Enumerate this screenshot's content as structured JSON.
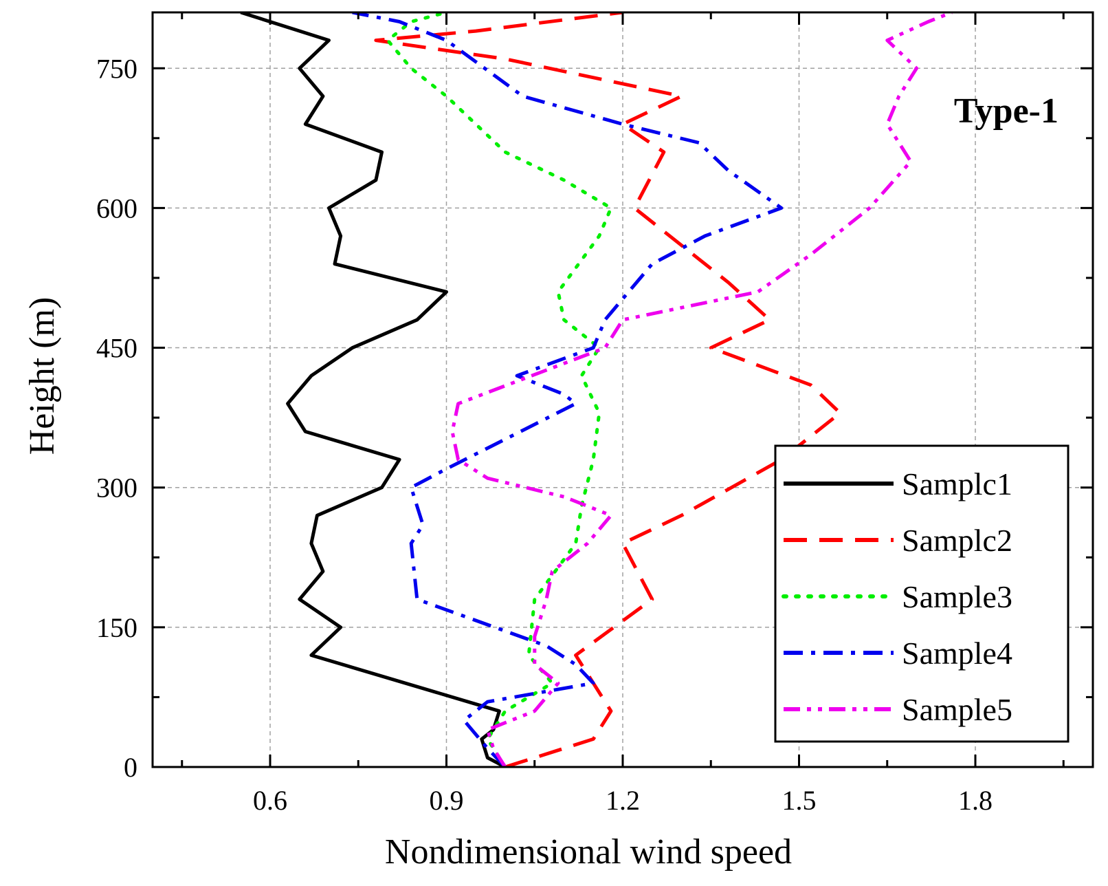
{
  "chart_data": {
    "type": "line",
    "title": "",
    "annotation": "Type-1",
    "xlabel": "Nondimensional wind speed",
    "ylabel": "Height (m)",
    "xlim": [
      0.4,
      2.0
    ],
    "ylim": [
      0,
      810
    ],
    "xticks": [
      0.6,
      0.9,
      1.2,
      1.5,
      1.8
    ],
    "xtick_labels": [
      "0.6",
      "0.9",
      "1.2",
      "1.5",
      "1.8"
    ],
    "yticks": [
      0,
      150,
      300,
      450,
      600,
      750
    ],
    "ytick_labels": [
      "0",
      "150",
      "300",
      "450",
      "600",
      "750"
    ],
    "grid": true,
    "legend_position": "bottom-right",
    "series": [
      {
        "name": "Samplc1",
        "color": "#000000",
        "style": "solid",
        "points": [
          [
            1.0,
            0
          ],
          [
            0.97,
            10
          ],
          [
            0.96,
            30
          ],
          [
            0.98,
            40
          ],
          [
            0.99,
            60
          ],
          [
            0.67,
            120
          ],
          [
            0.72,
            150
          ],
          [
            0.65,
            180
          ],
          [
            0.69,
            210
          ],
          [
            0.67,
            240
          ],
          [
            0.68,
            270
          ],
          [
            0.79,
            300
          ],
          [
            0.82,
            330
          ],
          [
            0.66,
            360
          ],
          [
            0.63,
            390
          ],
          [
            0.67,
            420
          ],
          [
            0.74,
            450
          ],
          [
            0.85,
            480
          ],
          [
            0.9,
            510
          ],
          [
            0.71,
            540
          ],
          [
            0.72,
            570
          ],
          [
            0.7,
            600
          ],
          [
            0.78,
            630
          ],
          [
            0.79,
            660
          ],
          [
            0.66,
            690
          ],
          [
            0.69,
            720
          ],
          [
            0.65,
            750
          ],
          [
            0.7,
            780
          ],
          [
            0.55,
            810
          ]
        ]
      },
      {
        "name": "Samplc2",
        "color": "#ff0000",
        "style": "dash",
        "points": [
          [
            1.0,
            0
          ],
          [
            1.05,
            10
          ],
          [
            1.15,
            30
          ],
          [
            1.18,
            60
          ],
          [
            1.15,
            90
          ],
          [
            1.12,
            120
          ],
          [
            1.25,
            180
          ],
          [
            1.2,
            240
          ],
          [
            1.3,
            270
          ],
          [
            1.47,
            330
          ],
          [
            1.57,
            380
          ],
          [
            1.52,
            410
          ],
          [
            1.35,
            450
          ],
          [
            1.45,
            480
          ],
          [
            1.38,
            520
          ],
          [
            1.22,
            600
          ],
          [
            1.27,
            660
          ],
          [
            1.2,
            690
          ],
          [
            1.3,
            720
          ],
          [
            1.0,
            760
          ],
          [
            0.78,
            780
          ],
          [
            0.95,
            790
          ],
          [
            1.2,
            810
          ]
        ]
      },
      {
        "name": "Sample3",
        "color": "#00ee00",
        "style": "dot",
        "points": [
          [
            1.0,
            0
          ],
          [
            0.97,
            30
          ],
          [
            1.0,
            60
          ],
          [
            1.08,
            90
          ],
          [
            1.04,
            120
          ],
          [
            1.05,
            180
          ],
          [
            1.12,
            240
          ],
          [
            1.13,
            280
          ],
          [
            1.15,
            330
          ],
          [
            1.16,
            380
          ],
          [
            1.13,
            420
          ],
          [
            1.16,
            450
          ],
          [
            1.1,
            480
          ],
          [
            1.09,
            510
          ],
          [
            1.16,
            570
          ],
          [
            1.18,
            600
          ],
          [
            1.1,
            630
          ],
          [
            1.0,
            660
          ],
          [
            0.9,
            720
          ],
          [
            0.84,
            750
          ],
          [
            0.8,
            780
          ],
          [
            0.84,
            800
          ],
          [
            0.9,
            810
          ]
        ]
      },
      {
        "name": "Sample4",
        "color": "#0000ee",
        "style": "dashdot",
        "points": [
          [
            1.0,
            0
          ],
          [
            0.97,
            20
          ],
          [
            0.93,
            50
          ],
          [
            0.97,
            70
          ],
          [
            1.15,
            90
          ],
          [
            1.12,
            110
          ],
          [
            1.07,
            130
          ],
          [
            0.85,
            180
          ],
          [
            0.84,
            240
          ],
          [
            0.86,
            260
          ],
          [
            0.84,
            300
          ],
          [
            0.9,
            320
          ],
          [
            1.12,
            390
          ],
          [
            1.1,
            400
          ],
          [
            1.02,
            420
          ],
          [
            1.15,
            450
          ],
          [
            1.17,
            480
          ],
          [
            1.25,
            540
          ],
          [
            1.34,
            570
          ],
          [
            1.47,
            600
          ],
          [
            1.38,
            640
          ],
          [
            1.33,
            670
          ],
          [
            1.2,
            690
          ],
          [
            1.03,
            720
          ],
          [
            0.9,
            780
          ],
          [
            0.82,
            800
          ],
          [
            0.74,
            810
          ]
        ]
      },
      {
        "name": "Sample5",
        "color": "#ee00ee",
        "style": "dashdotdot",
        "points": [
          [
            1.0,
            0
          ],
          [
            0.98,
            20
          ],
          [
            0.97,
            40
          ],
          [
            1.05,
            60
          ],
          [
            1.09,
            90
          ],
          [
            1.05,
            110
          ],
          [
            1.05,
            140
          ],
          [
            1.07,
            180
          ],
          [
            1.08,
            210
          ],
          [
            1.14,
            240
          ],
          [
            1.18,
            270
          ],
          [
            1.1,
            290
          ],
          [
            0.97,
            310
          ],
          [
            0.92,
            330
          ],
          [
            0.91,
            360
          ],
          [
            0.92,
            390
          ],
          [
            1.17,
            450
          ],
          [
            1.2,
            480
          ],
          [
            1.43,
            510
          ],
          [
            1.52,
            550
          ],
          [
            1.62,
            600
          ],
          [
            1.69,
            650
          ],
          [
            1.65,
            690
          ],
          [
            1.67,
            720
          ],
          [
            1.7,
            750
          ],
          [
            1.65,
            780
          ],
          [
            1.72,
            800
          ],
          [
            1.76,
            810
          ]
        ]
      }
    ]
  }
}
